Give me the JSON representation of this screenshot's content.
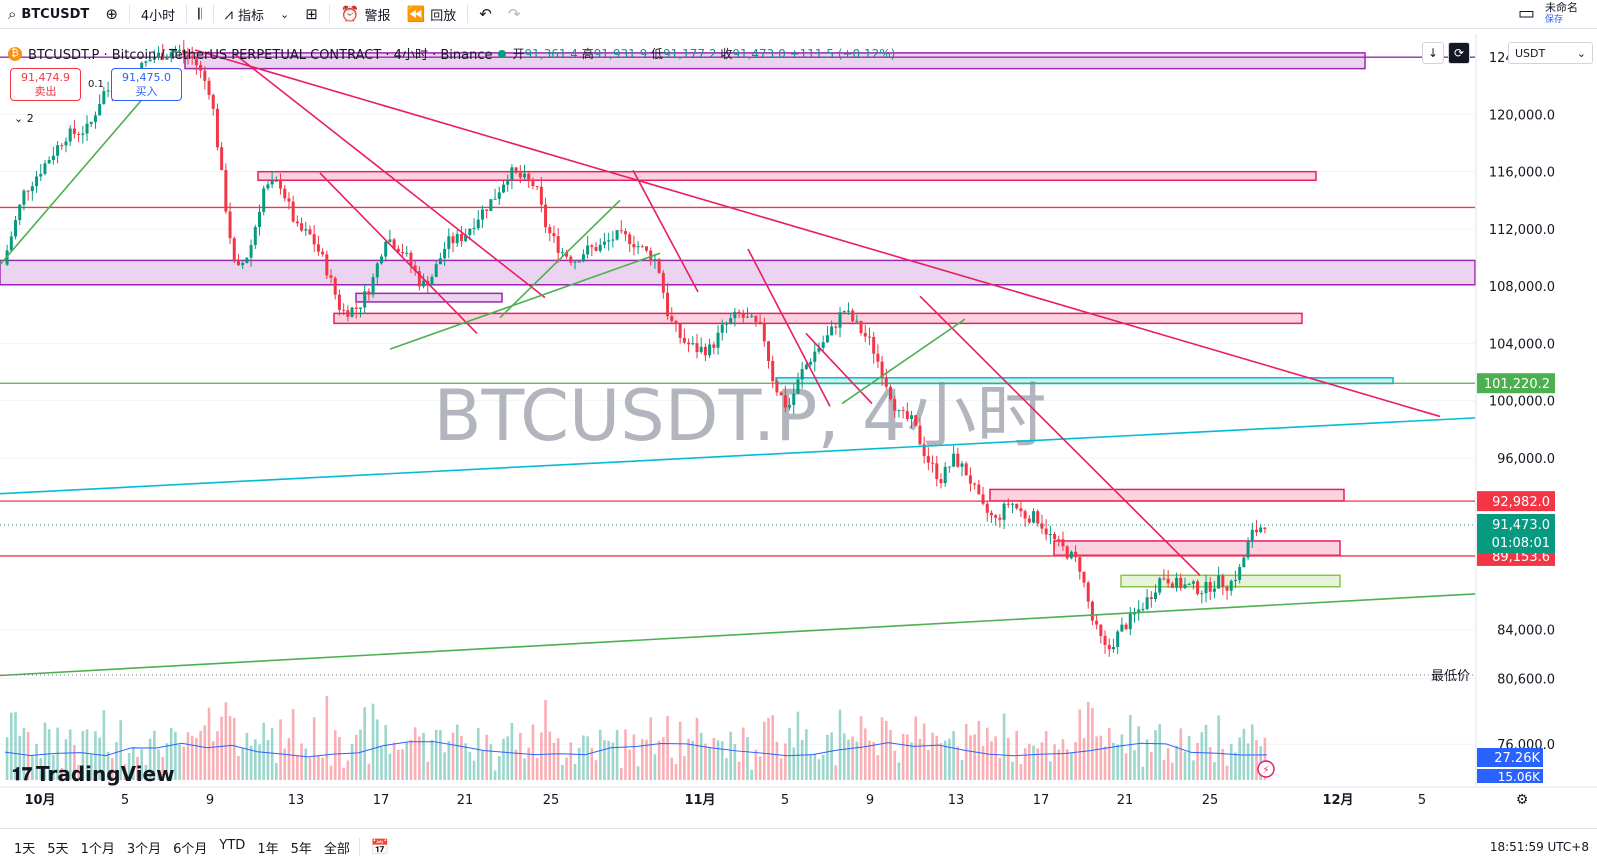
{
  "toolbar": {
    "symbol": "BTCUSDT",
    "interval": "4小时",
    "indicators": "指标",
    "alert": "警报",
    "replay": "回放",
    "layout_name": "未命名",
    "layout_status": "保存"
  },
  "legend": {
    "title": "BTCUSDT.P · Bitcoin / TetherUS PERPETUAL CONTRACT · 4小时 · Binance",
    "open_label": "开",
    "open": "91,361.4",
    "high_label": "高",
    "high": "91,931.9",
    "low_label": "低",
    "low": "91,177.2",
    "close_label": "收",
    "close": "91,473.0",
    "change": "+111.5 (+0.12%)",
    "sell_price": "91,474.9",
    "sell_label": "卖出",
    "spread": "0.1",
    "buy_price": "91,475.0",
    "buy_label": "买入",
    "indicator_count": "2"
  },
  "currency_select": "USDT",
  "watermark": "BTCUSDT.P, 4小时",
  "price_axis": {
    "ticks": [
      "124,000.0",
      "120,000.0",
      "116,000.0",
      "112,000.0",
      "108,000.0",
      "104,000.0",
      "100,000.0",
      "96,000.0",
      "84,000.0",
      "80,600.0",
      "76,000.0"
    ],
    "tick_values": [
      124000,
      120000,
      116000,
      112000,
      108000,
      104000,
      100000,
      96000,
      84000,
      80600,
      76000
    ],
    "low_label": "最低价",
    "badges": [
      {
        "text": "101,220.2",
        "color": "#4caf50",
        "value": 101220.2
      },
      {
        "text": "92,982.0",
        "color": "#f23645",
        "value": 92982
      },
      {
        "text": "89,153.6",
        "color": "#f23645",
        "value": 89153.6
      }
    ],
    "last_price": "91,473.0",
    "countdown": "01:08:01",
    "volume_badge": "27.26K",
    "volume_badge2": "15.06K"
  },
  "time_axis": [
    "10月",
    "5",
    "9",
    "13",
    "17",
    "21",
    "25",
    "11月",
    "5",
    "9",
    "13",
    "17",
    "21",
    "25",
    "12月",
    "5"
  ],
  "bottom": {
    "ranges": [
      "1天",
      "5天",
      "1个月",
      "3个月",
      "6个月",
      "YTD",
      "1年",
      "5年",
      "全部"
    ],
    "clock": "18:51:59 UTC+8"
  },
  "brand": "TradingView",
  "colors": {
    "up": "#089981",
    "down": "#f23645",
    "accent": "#2962ff"
  },
  "chart_data": {
    "type": "candlestick",
    "y_range": [
      72800,
      125200
    ],
    "key_prices": {
      "low": 80600,
      "support_green": 101220.2,
      "resistance": 92982,
      "level": 89153.6,
      "last": 91473
    },
    "path": [
      [
        0,
        109500
      ],
      [
        15,
        114500
      ],
      [
        45,
        118500
      ],
      [
        62,
        119000
      ],
      [
        72,
        121500
      ],
      [
        90,
        122500
      ],
      [
        108,
        124000
      ],
      [
        125,
        124500
      ],
      [
        138,
        123800
      ],
      [
        150,
        121500
      ],
      [
        160,
        114000
      ],
      [
        168,
        108800
      ],
      [
        178,
        110500
      ],
      [
        188,
        114800
      ],
      [
        200,
        115200
      ],
      [
        212,
        112000
      ],
      [
        222,
        111500
      ],
      [
        232,
        109600
      ],
      [
        244,
        106200
      ],
      [
        256,
        106500
      ],
      [
        266,
        108200
      ],
      [
        276,
        111500
      ],
      [
        288,
        110500
      ],
      [
        296,
        109200
      ],
      [
        302,
        108000
      ],
      [
        310,
        108800
      ],
      [
        320,
        111000
      ],
      [
        332,
        111500
      ],
      [
        342,
        112800
      ],
      [
        355,
        114300
      ],
      [
        365,
        116000
      ],
      [
        375,
        115500
      ],
      [
        384,
        115000
      ],
      [
        392,
        112000
      ],
      [
        402,
        110500
      ],
      [
        412,
        109800
      ],
      [
        420,
        110500
      ],
      [
        432,
        110800
      ],
      [
        442,
        111500
      ],
      [
        452,
        111300
      ],
      [
        462,
        110500
      ],
      [
        472,
        109700
      ],
      [
        480,
        105800
      ],
      [
        490,
        104200
      ],
      [
        500,
        103600
      ],
      [
        510,
        103600
      ],
      [
        520,
        105200
      ],
      [
        530,
        106000
      ],
      [
        540,
        105500
      ],
      [
        548,
        104800
      ],
      [
        556,
        101200
      ],
      [
        566,
        99400
      ],
      [
        576,
        102000
      ],
      [
        586,
        103500
      ],
      [
        596,
        104600
      ],
      [
        606,
        106400
      ],
      [
        616,
        105200
      ],
      [
        626,
        104000
      ],
      [
        636,
        101500
      ],
      [
        646,
        99000
      ],
      [
        656,
        98500
      ],
      [
        666,
        96000
      ],
      [
        676,
        94500
      ],
      [
        686,
        96000
      ],
      [
        696,
        94800
      ],
      [
        706,
        92500
      ],
      [
        716,
        91600
      ],
      [
        726,
        93000
      ],
      [
        736,
        92000
      ],
      [
        746,
        91800
      ],
      [
        756,
        90400
      ],
      [
        766,
        89500
      ],
      [
        776,
        88600
      ],
      [
        786,
        84500
      ],
      [
        796,
        82400
      ],
      [
        806,
        84000
      ],
      [
        816,
        85000
      ],
      [
        826,
        86200
      ],
      [
        836,
        87800
      ],
      [
        846,
        87200
      ],
      [
        856,
        87000
      ],
      [
        866,
        86800
      ],
      [
        876,
        87400
      ],
      [
        884,
        87100
      ],
      [
        892,
        88200
      ],
      [
        900,
        90600
      ],
      [
        910,
        91473
      ]
    ],
    "hline_levels": [
      {
        "price": 124000,
        "color": "#9c27b0"
      },
      {
        "price": 113500,
        "color": "#f23645"
      },
      {
        "price": 101220.2,
        "color": "#4caf50"
      },
      {
        "price": 92982,
        "color": "#f23645"
      },
      {
        "price": 89153.6,
        "color": "#f23645"
      }
    ],
    "zones": [
      {
        "x1": 185,
        "x2": 1365,
        "p1": 124300,
        "p2": 123200,
        "color": "#9c27b0"
      },
      {
        "x1": 258,
        "x2": 1316,
        "p1": 116000,
        "p2": 115400,
        "color": "#e91e63"
      },
      {
        "x1": 0,
        "x2": 1475,
        "p1": 109800,
        "p2": 108100,
        "color": "#9c27b0"
      },
      {
        "x1": 334,
        "x2": 1302,
        "p1": 106100,
        "p2": 105400,
        "color": "#e91e63"
      },
      {
        "x1": 356,
        "x2": 502,
        "p1": 107500,
        "p2": 106900,
        "color": "#9c27b0"
      },
      {
        "x1": 776,
        "x2": 1393,
        "p1": 101600,
        "p2": 101200,
        "color": "#00bcd4"
      },
      {
        "x1": 990,
        "x2": 1344,
        "p1": 93800,
        "p2": 93000,
        "color": "#e91e63"
      },
      {
        "x1": 1054,
        "x2": 1340,
        "p1": 90200,
        "p2": 89200,
        "color": "#e91e63"
      },
      {
        "x1": 1121,
        "x2": 1340,
        "p1": 87800,
        "p2": 87000,
        "color": "#8bc34a"
      }
    ],
    "trendlines": [
      {
        "x1": 195,
        "p1": 124500,
        "x2": 1440,
        "p2": 98900,
        "color": "#e91e63"
      },
      {
        "x1": 0,
        "p1": 93500,
        "x2": 1475,
        "p2": 98800,
        "color": "#00bcd4"
      },
      {
        "x1": 0,
        "p1": 80800,
        "x2": 1475,
        "p2": 86500,
        "color": "#4caf50"
      },
      {
        "x1": 235,
        "p1": 124200,
        "x2": 545,
        "p2": 107200,
        "color": "#e91e63"
      },
      {
        "x1": 320,
        "p1": 115900,
        "x2": 477,
        "p2": 104700,
        "color": "#e91e63"
      },
      {
        "x1": 633,
        "p1": 116100,
        "x2": 698,
        "p2": 107600,
        "color": "#e91e63"
      },
      {
        "x1": 748,
        "p1": 110600,
        "x2": 830,
        "p2": 99600,
        "color": "#e91e63"
      },
      {
        "x1": 806,
        "p1": 104700,
        "x2": 872,
        "p2": 99800,
        "color": "#e91e63"
      },
      {
        "x1": 920,
        "p1": 107300,
        "x2": 1200,
        "p2": 87800,
        "color": "#e91e63"
      },
      {
        "x1": 0,
        "p1": 109500,
        "x2": 160,
        "p2": 122500,
        "color": "#4caf50"
      },
      {
        "x1": 390,
        "p1": 103600,
        "x2": 660,
        "p2": 110300,
        "color": "#4caf50"
      },
      {
        "x1": 500,
        "p1": 105800,
        "x2": 620,
        "p2": 114000,
        "color": "#4caf50"
      },
      {
        "x1": 842,
        "p1": 99800,
        "x2": 965,
        "p2": 105700,
        "color": "#4caf50"
      }
    ]
  }
}
